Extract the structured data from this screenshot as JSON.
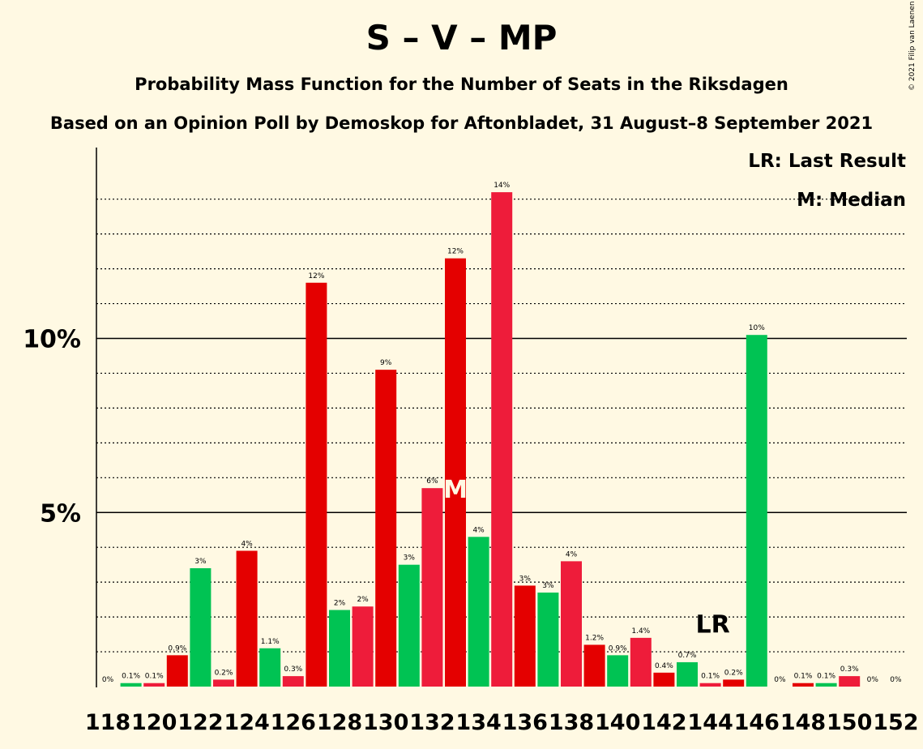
{
  "title": "S – V – MP",
  "subtitle": "Probability Mass Function for the Number of Seats in the Riksdagen",
  "subtitle2": "Based on an Opinion Poll by Demoskop for Aftonbladet, 31 August–8 September 2021",
  "copyright": "© 2021 Filip van Laenen",
  "legend": {
    "last_result": "LR: Last Result",
    "median": "M: Median"
  },
  "colors": {
    "background": "#FFF9E3",
    "red_dark": "#E40000",
    "red_light": "#EE1C3A",
    "green": "#00C353"
  },
  "chart_data": {
    "type": "bar",
    "x": [
      118,
      119,
      120,
      121,
      122,
      123,
      124,
      125,
      126,
      127,
      128,
      129,
      130,
      131,
      132,
      133,
      134,
      135,
      136,
      137,
      138,
      139,
      140,
      141,
      142,
      143,
      144,
      145,
      146,
      147,
      148,
      149,
      150,
      151,
      152
    ],
    "values": [
      0.0,
      0.1,
      0.1,
      0.9,
      3.4,
      0.2,
      3.9,
      1.1,
      0.3,
      11.6,
      2.2,
      2.3,
      9.1,
      3.5,
      5.7,
      12.3,
      4.3,
      14.2,
      2.9,
      2.7,
      3.6,
      1.2,
      0.9,
      1.4,
      0.4,
      0.7,
      0.1,
      0.2,
      10.1,
      0.0,
      0.1,
      0.1,
      0.3,
      0.0,
      0.0
    ],
    "value_labels": [
      "0%",
      "0.1%",
      "0.1%",
      "0.9%",
      "3%",
      "0.2%",
      "4%",
      "1.1%",
      "0.3%",
      "12%",
      "2%",
      "2%",
      "9%",
      "3%",
      "6%",
      "12%",
      "4%",
      "14%",
      "3%",
      "3%",
      "4%",
      "1.2%",
      "0.9%",
      "1.4%",
      "0.4%",
      "0.7%",
      "0.1%",
      "0.2%",
      "10%",
      "0%",
      "0.1%",
      "0.1%",
      "0.3%",
      "0%",
      "0%"
    ],
    "bar_colors": [
      "#E40000",
      "#00C353",
      "#EE1C3A",
      "#E40000",
      "#00C353",
      "#EE1C3A",
      "#E40000",
      "#00C353",
      "#EE1C3A",
      "#E40000",
      "#00C353",
      "#EE1C3A",
      "#E40000",
      "#00C353",
      "#EE1C3A",
      "#E40000",
      "#00C353",
      "#EE1C3A",
      "#E40000",
      "#00C353",
      "#EE1C3A",
      "#E40000",
      "#00C353",
      "#EE1C3A",
      "#E40000",
      "#00C353",
      "#EE1C3A",
      "#E40000",
      "#00C353",
      "#EE1C3A",
      "#E40000",
      "#00C353",
      "#EE1C3A",
      "#E40000",
      "#00C353"
    ],
    "x_tick_labels": [
      "118",
      "120",
      "122",
      "124",
      "126",
      "128",
      "130",
      "132",
      "134",
      "136",
      "138",
      "140",
      "142",
      "144",
      "146",
      "148",
      "150",
      "152"
    ],
    "y_tick_labels": [
      "5%",
      "10%"
    ],
    "ylim": [
      0,
      15.5
    ],
    "median_seat": 133,
    "median_marker": "M",
    "last_result_seat": 144,
    "last_result_marker": "LR",
    "grid": "dotted every 1%, solid at 5% and 10%"
  }
}
